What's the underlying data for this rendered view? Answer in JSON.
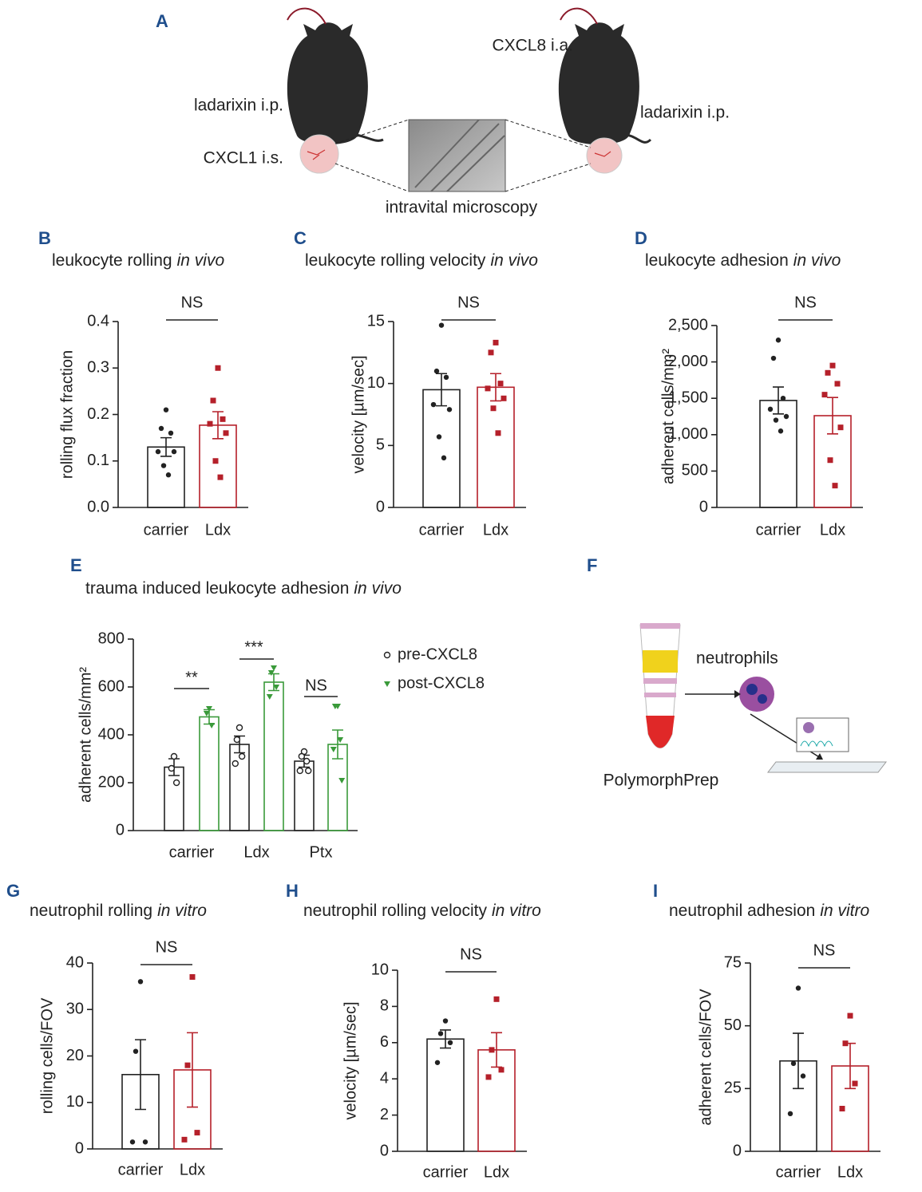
{
  "panel_a": {
    "label": "A",
    "left_drug": "ladarixin i.p.",
    "left_stim": "CXCL1 i.s.",
    "right_stim": "CXCL8 i.a.",
    "right_drug": "ladarixin i.p.",
    "caption": "intravital microscopy"
  },
  "panel_f": {
    "label": "F",
    "cells": "neutrophils",
    "method": "PolymorphPrep"
  },
  "chart_data": [
    {
      "type": "bar",
      "panel": "B",
      "title": "leukocyte rolling",
      "title_em": "in vivo",
      "ylabel": "rolling flux fraction",
      "categories": [
        "carrier",
        "Ldx"
      ],
      "values": [
        0.13,
        0.177
      ],
      "errors": [
        0.02,
        0.029
      ],
      "points": [
        [
          0.21,
          0.17,
          0.16,
          0.12,
          0.12,
          0.09,
          0.07
        ],
        [
          0.3,
          0.23,
          0.19,
          0.18,
          0.16,
          0.1,
          0.065
        ]
      ],
      "colors": [
        "#222222",
        "#b5202a"
      ],
      "markers": [
        "circle",
        "square"
      ],
      "ylim": [
        0,
        0.4
      ],
      "yticks": [
        {
          "value": 0,
          "label": "0.0"
        },
        0.1,
        0.2,
        0.3,
        0.4
      ],
      "annotation": "NS"
    },
    {
      "type": "bar",
      "panel": "C",
      "title": "leukocyte rolling velocity",
      "title_em": "in vivo",
      "ylabel": "velocity [µm/sec]",
      "categories": [
        "carrier",
        "Ldx"
      ],
      "values": [
        9.5,
        9.7
      ],
      "errors": [
        1.3,
        1.1
      ],
      "points": [
        [
          14.7,
          11,
          10.5,
          8.3,
          7.9,
          5.7,
          4
        ],
        [
          13.3,
          12.5,
          10,
          9.6,
          8.8,
          8,
          6
        ]
      ],
      "colors": [
        "#222222",
        "#b5202a"
      ],
      "markers": [
        "circle",
        "square"
      ],
      "ylim": [
        0,
        15
      ],
      "yticks": [
        0,
        5,
        10,
        15
      ],
      "annotation": "NS"
    },
    {
      "type": "bar",
      "panel": "D",
      "title": "leukocyte adhesion",
      "title_em": "in vivo",
      "ylabel": "adherent cells/mm²",
      "categories": [
        "carrier",
        "Ldx"
      ],
      "values": [
        1470,
        1261
      ],
      "errors": [
        185,
        250
      ],
      "points": [
        [
          2300,
          2050,
          1500,
          1350,
          1250,
          1200,
          1050
        ],
        [
          1950,
          1850,
          1700,
          1550,
          1100,
          650,
          300
        ]
      ],
      "colors": [
        "#222222",
        "#b5202a"
      ],
      "markers": [
        "circle",
        "square"
      ],
      "ylim": [
        0,
        2500
      ],
      "yticks": [
        0,
        500,
        {
          "value": 1000,
          "label": "1,000"
        },
        {
          "value": 1500,
          "label": "1,500"
        },
        {
          "value": 2000,
          "label": "2,000"
        },
        {
          "value": 2500,
          "label": "2,500"
        }
      ],
      "annotation": "NS"
    },
    {
      "type": "grouped_bar",
      "panel": "E",
      "title": "trauma induced leukocyte adhesion",
      "title_em": "in vivo",
      "ylabel": "adherent cells/mm²",
      "categories": [
        "carrier",
        "Ldx",
        "Ptx"
      ],
      "series": [
        {
          "name": "pre-CXCL8",
          "color": "#222222",
          "marker": "open-circle",
          "values": [
            265,
            360,
            290
          ],
          "errors": [
            35,
            35,
            25
          ],
          "points": [
            [
              310,
              260,
              200
            ],
            [
              430,
              380,
              310,
              280
            ],
            [
              330,
              310,
              290,
              250,
              250
            ]
          ]
        },
        {
          "name": "post-CXCL8",
          "color": "#3a9a3a",
          "marker": "triangle",
          "values": [
            475,
            620,
            360
          ],
          "errors": [
            30,
            35,
            60
          ],
          "points": [
            [
              510,
              490,
              440
            ],
            [
              680,
              660,
              600,
              560
            ],
            [
              520,
              520,
              380,
              340,
              210
            ]
          ]
        }
      ],
      "ylim": [
        0,
        800
      ],
      "yticks": [
        0,
        200,
        400,
        600,
        800
      ],
      "annotations": [
        "**",
        "***",
        "NS"
      ],
      "legend": "right"
    },
    {
      "type": "bar",
      "panel": "G",
      "title": "neutrophil rolling",
      "title_em": "in vitro",
      "ylabel": "rolling cells/FOV",
      "categories": [
        "carrier",
        "Ldx"
      ],
      "values": [
        16,
        17
      ],
      "errors": [
        7.5,
        8
      ],
      "points": [
        [
          36,
          21,
          1.5,
          1.5
        ],
        [
          37,
          18,
          3.5,
          2
        ]
      ],
      "colors": [
        "#222222",
        "#b5202a"
      ],
      "markers": [
        "circle",
        "square"
      ],
      "ylim": [
        0,
        40
      ],
      "yticks": [
        0,
        10,
        20,
        30,
        40
      ],
      "annotation": "NS"
    },
    {
      "type": "bar",
      "panel": "H",
      "title": "neutrophil rolling velocity",
      "title_em": "in vitro",
      "ylabel": "velocity [µm/sec]",
      "categories": [
        "carrier",
        "Ldx"
      ],
      "values": [
        6.2,
        5.6
      ],
      "errors": [
        0.5,
        0.95
      ],
      "points": [
        [
          7.2,
          6.5,
          6,
          4.9
        ],
        [
          8.4,
          5.6,
          4.5,
          4.1
        ]
      ],
      "colors": [
        "#222222",
        "#b5202a"
      ],
      "markers": [
        "circle",
        "square"
      ],
      "ylim": [
        0,
        10
      ],
      "yticks": [
        0,
        2,
        4,
        6,
        8,
        10
      ],
      "annotation": "NS"
    },
    {
      "type": "bar",
      "panel": "I",
      "title": "neutrophil adhesion",
      "title_em": "in vitro",
      "ylabel": "adherent cells/FOV",
      "categories": [
        "carrier",
        "Ldx"
      ],
      "values": [
        36,
        34
      ],
      "errors": [
        11,
        9
      ],
      "points": [
        [
          65,
          35,
          30,
          15
        ],
        [
          54,
          43,
          27,
          17
        ]
      ],
      "colors": [
        "#222222",
        "#b5202a"
      ],
      "markers": [
        "circle",
        "square"
      ],
      "ylim": [
        0,
        75
      ],
      "yticks": [
        0,
        25,
        50,
        75
      ],
      "annotation": "NS"
    }
  ]
}
